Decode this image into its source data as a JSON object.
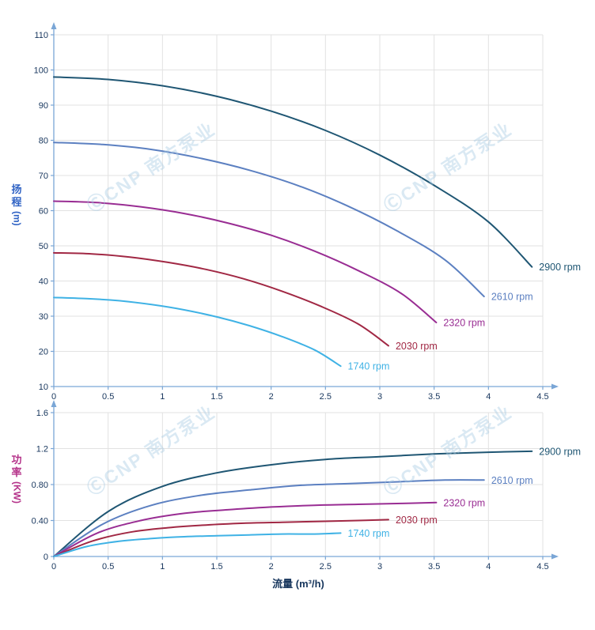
{
  "watermark": {
    "text": "ⒸCNP 南方泵业"
  },
  "axis_titles": {
    "head_chars": [
      "扬",
      "程"
    ],
    "head_unit": "(m)",
    "power_chars": [
      "功",
      "率"
    ],
    "power_unit": "(KW)",
    "x_title": "流量 (m³/h)"
  },
  "colors": {
    "grid": "#e2e2e2",
    "axis": "#7aa6d6",
    "tick_text": "#17365d",
    "head_title": "#2f62c4",
    "power_title": "#b5338a",
    "x_title": "#17365d",
    "watermark": "#a8cbe4"
  },
  "chart_data": [
    {
      "type": "line",
      "id": "head",
      "title": "",
      "xlabel": "流量 (m³/h)",
      "ylabel": "扬程(m)",
      "xlim": [
        0,
        4.5
      ],
      "ylim": [
        10,
        110
      ],
      "grid": true,
      "legend_position": "line-end-labels",
      "xtick_values": [
        0,
        0.5,
        1,
        1.5,
        2,
        2.5,
        3,
        3.5,
        4,
        4.5
      ],
      "xtick_labels": [
        "0",
        "0.5",
        "1",
        "1.5",
        "2",
        "2.5",
        "3",
        "3.5",
        "4",
        "4.5"
      ],
      "ytick_values": [
        10,
        20,
        30,
        40,
        50,
        60,
        70,
        80,
        90,
        100,
        110
      ],
      "ytick_labels": [
        "10",
        "20",
        "30",
        "40",
        "50",
        "60",
        "70",
        "80",
        "90",
        "100",
        "110"
      ],
      "series": [
        {
          "name": "2900 rpm",
          "color": "#1f5673",
          "x": [
            0,
            0.5,
            1,
            1.5,
            2,
            2.5,
            3,
            3.5,
            4,
            4.4
          ],
          "y": [
            98,
            97.3,
            95.5,
            92.5,
            88.3,
            82.8,
            75.8,
            67.2,
            56.8,
            44
          ]
        },
        {
          "name": "2610 rpm",
          "color": "#5c80c1",
          "x": [
            0,
            0.45,
            0.9,
            1.35,
            1.8,
            2.25,
            2.7,
            3.15,
            3.6,
            3.96
          ],
          "y": [
            79.4,
            78.8,
            77.4,
            74.9,
            71.5,
            67.1,
            61.4,
            54.4,
            46,
            35.6
          ]
        },
        {
          "name": "2320 rpm",
          "color": "#992d93",
          "x": [
            0,
            0.4,
            0.8,
            1.2,
            1.6,
            2,
            2.4,
            2.8,
            3.2,
            3.52
          ],
          "y": [
            62.7,
            62.3,
            61.1,
            59.2,
            56.5,
            53,
            48.5,
            43,
            36.4,
            28.2
          ]
        },
        {
          "name": "2030 rpm",
          "color": "#a12844",
          "x": [
            0,
            0.35,
            0.7,
            1.05,
            1.4,
            1.75,
            2.1,
            2.45,
            2.8,
            3.08
          ],
          "y": [
            48,
            47.7,
            46.8,
            45.3,
            43.3,
            40.6,
            37.1,
            32.9,
            27.8,
            21.6
          ]
        },
        {
          "name": "1740 rpm",
          "color": "#3fb2e5",
          "x": [
            0,
            0.3,
            0.6,
            0.9,
            1.2,
            1.5,
            1.8,
            2.1,
            2.4,
            2.64
          ],
          "y": [
            35.3,
            35,
            34.4,
            33.3,
            31.8,
            29.8,
            27.3,
            24.2,
            20.4,
            15.8
          ]
        }
      ]
    },
    {
      "type": "line",
      "id": "power",
      "title": "",
      "xlabel": "流量 (m³/h)",
      "ylabel": "功率(KW)",
      "xlim": [
        0,
        4.5
      ],
      "ylim": [
        0,
        1.6
      ],
      "grid": true,
      "legend_position": "line-end-labels",
      "xtick_values": [
        0,
        0.5,
        1,
        1.5,
        2,
        2.5,
        3,
        3.5,
        4,
        4.5
      ],
      "xtick_labels": [
        "0",
        "0.5",
        "1",
        "1.5",
        "2",
        "2.5",
        "3",
        "3.5",
        "4",
        "4.5"
      ],
      "ytick_values": [
        0,
        0.4,
        0.8,
        1.2,
        1.6
      ],
      "ytick_labels": [
        "0",
        "0.40",
        "0.80",
        "1.2",
        "1.6"
      ],
      "series": [
        {
          "name": "2900 rpm",
          "color": "#1f5673",
          "x": [
            0,
            0.5,
            1,
            1.5,
            2,
            2.5,
            3,
            3.5,
            4,
            4.4
          ],
          "y": [
            0,
            0.5,
            0.78,
            0.93,
            1.02,
            1.08,
            1.11,
            1.14,
            1.16,
            1.17
          ]
        },
        {
          "name": "2610 rpm",
          "color": "#5c80c1",
          "x": [
            0,
            0.45,
            0.9,
            1.35,
            1.8,
            2.25,
            2.7,
            3.15,
            3.6,
            3.96
          ],
          "y": [
            0,
            0.36,
            0.57,
            0.68,
            0.74,
            0.79,
            0.81,
            0.83,
            0.85,
            0.85
          ]
        },
        {
          "name": "2320 rpm",
          "color": "#992d93",
          "x": [
            0,
            0.4,
            0.8,
            1.2,
            1.6,
            2,
            2.4,
            2.8,
            3.2,
            3.52
          ],
          "y": [
            0,
            0.26,
            0.4,
            0.48,
            0.52,
            0.55,
            0.57,
            0.58,
            0.59,
            0.6
          ]
        },
        {
          "name": "2030 rpm",
          "color": "#a12844",
          "x": [
            0,
            0.35,
            0.7,
            1.05,
            1.4,
            1.75,
            2.1,
            2.45,
            2.8,
            3.08
          ],
          "y": [
            0,
            0.17,
            0.27,
            0.32,
            0.35,
            0.37,
            0.38,
            0.39,
            0.4,
            0.41
          ]
        },
        {
          "name": "1740 rpm",
          "color": "#3fb2e5",
          "x": [
            0,
            0.3,
            0.6,
            0.9,
            1.2,
            1.5,
            1.8,
            2.1,
            2.4,
            2.64
          ],
          "y": [
            0,
            0.11,
            0.17,
            0.2,
            0.22,
            0.23,
            0.24,
            0.25,
            0.25,
            0.26
          ]
        }
      ]
    }
  ]
}
